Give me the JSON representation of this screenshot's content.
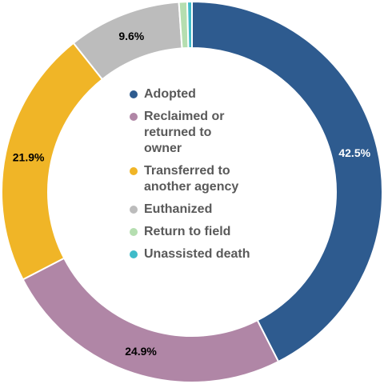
{
  "chart_data": {
    "type": "pie",
    "variant": "donut",
    "title": "",
    "categories": [
      "Adopted",
      "Reclaimed or returned to owner",
      "Transferred to another agency",
      "Euthanized",
      "Return to field",
      "Unassisted death"
    ],
    "values": [
      42.5,
      24.9,
      21.9,
      9.6,
      0.7,
      0.4
    ],
    "data_labels": [
      "42.5%",
      "24.9%",
      "21.9%",
      "9.6%",
      "",
      ""
    ],
    "legend": {
      "placement": "center",
      "entries": [
        {
          "lines": [
            "Reclaimed or",
            "returned to",
            "owner"
          ]
        }
      ]
    },
    "colors": [
      "#2e5b8f",
      "#b086a6",
      "#f0b527",
      "#bcbcbc",
      "#b5deb0",
      "#3fbbc9"
    ],
    "label_colors": [
      "#ffffff",
      "#000000",
      "#000000",
      "#000000",
      "#000000",
      "#000000"
    ]
  },
  "legend_lines": [
    [
      "Adopted"
    ],
    [
      "Reclaimed or",
      "returned to",
      "owner"
    ],
    [
      "Transferred to",
      "another agency"
    ],
    [
      "Euthanized"
    ],
    [
      "Return to field"
    ],
    [
      "Unassisted death"
    ]
  ]
}
